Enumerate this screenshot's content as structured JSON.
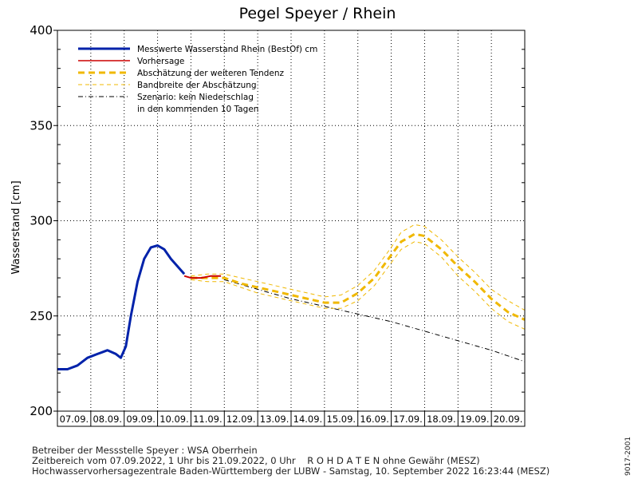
{
  "chart_data": {
    "type": "line",
    "title": "Pegel Speyer / Rhein",
    "ylabel": "Wasserstand [cm]",
    "xlabel": "",
    "ylim": [
      200,
      400
    ],
    "yticks": [
      200,
      250,
      300,
      350,
      400
    ],
    "xlim": [
      0,
      14
    ],
    "grid": true,
    "legend_position": "top-left",
    "day_labels": [
      "07.09.",
      "08.09.",
      "09.09.",
      "10.09.",
      "11.09.",
      "12.09.",
      "13.09.",
      "14.09.",
      "15.09.",
      "16.09.",
      "17.09.",
      "18.09.",
      "19.09.",
      "20.09."
    ],
    "legend": [
      {
        "label": "Messwerte Wasserstand Rhein (BestOf)   cm",
        "style": "measured"
      },
      {
        "label": "Vorhersage",
        "style": "forecast"
      },
      {
        "label": "Abschätzung der weiteren Tendenz",
        "style": "tendency"
      },
      {
        "label": "Bandbreite der Abschätzung",
        "style": "band"
      },
      {
        "label": "Szenario: kein Niederschlag",
        "style": "scenario"
      },
      {
        "label": "in den kommenden 10 Tagen",
        "style": "none"
      }
    ],
    "series": [
      {
        "name": "Messwerte Wasserstand Rhein (BestOf)   cm",
        "color": "#0022aa",
        "x": [
          0,
          0.3,
          0.6,
          0.9,
          1.2,
          1.5,
          1.75,
          1.9,
          2.05,
          2.2,
          2.4,
          2.6,
          2.8,
          3.0,
          3.2,
          3.4,
          3.6,
          3.8
        ],
        "y": [
          222,
          222,
          224,
          228,
          230,
          232,
          230,
          228,
          234,
          250,
          268,
          280,
          286,
          287,
          285,
          280,
          276,
          272
        ]
      },
      {
        "name": "Vorhersage",
        "color": "#cc0000",
        "x": [
          3.8,
          4.0,
          4.3,
          4.6,
          4.9
        ],
        "y": [
          271,
          270,
          270,
          271,
          271
        ]
      },
      {
        "name": "Abschätzung der weiteren Tendenz",
        "color": "#f0b800",
        "x": [
          4.0,
          4.5,
          5.0,
          5.5,
          6.0,
          6.5,
          7.0,
          7.5,
          8.0,
          8.5,
          9.0,
          9.5,
          10.0,
          10.3,
          10.7,
          11.0,
          11.5,
          12.0,
          12.5,
          13.0,
          13.5,
          14.0
        ],
        "y": [
          270,
          270,
          270,
          267,
          265,
          263,
          261,
          259,
          257,
          257,
          262,
          270,
          282,
          289,
          293,
          292,
          285,
          276,
          268,
          259,
          252,
          248
        ]
      },
      {
        "name": "Bandbreite der Abschätzung (oben)",
        "color": "#f0b800",
        "x": [
          4.0,
          4.5,
          5.0,
          5.5,
          6.0,
          6.5,
          7.0,
          7.5,
          8.0,
          8.5,
          9.0,
          9.5,
          10.0,
          10.3,
          10.7,
          11.0,
          11.5,
          12.0,
          12.5,
          13.0,
          13.5,
          14.0
        ],
        "y": [
          271,
          272,
          272,
          270,
          268,
          266,
          264,
          262,
          260,
          261,
          266,
          274,
          286,
          294,
          298,
          297,
          290,
          281,
          273,
          264,
          258,
          253
        ]
      },
      {
        "name": "Bandbreite der Abschätzung (unten)",
        "color": "#f0b800",
        "x": [
          4.0,
          4.5,
          5.0,
          5.5,
          6.0,
          6.5,
          7.0,
          7.5,
          8.0,
          8.5,
          9.0,
          9.5,
          10.0,
          10.3,
          10.7,
          11.0,
          11.5,
          12.0,
          12.5,
          13.0,
          13.5,
          14.0
        ],
        "y": [
          269,
          268,
          268,
          265,
          262,
          260,
          258,
          256,
          254,
          254,
          258,
          266,
          278,
          285,
          289,
          288,
          281,
          271,
          263,
          254,
          247,
          243
        ]
      },
      {
        "name": "Szenario: kein Niederschlag",
        "color": "#000000",
        "x": [
          5.0,
          6.0,
          7.0,
          8.0,
          9.0,
          10.0,
          11.0,
          12.0,
          13.0,
          14.0
        ],
        "y": [
          269,
          264,
          259,
          255,
          251,
          247,
          242,
          237,
          232,
          226
        ]
      }
    ]
  },
  "footer": {
    "line1": "Betreiber der Messstelle Speyer : WSA Oberrhein",
    "line2": "Zeitbereich vom 07.09.2022, 1 Uhr bis 21.09.2022, 0 Uhr    R O H D A T E N ohne Gewähr (MESZ)",
    "line3": "Hochwasservorhersagezentrale Baden-Württemberg der LUBW - Samstag, 10. September 2022 16:23:44 (MESZ)",
    "stamp": "9017-2001"
  }
}
